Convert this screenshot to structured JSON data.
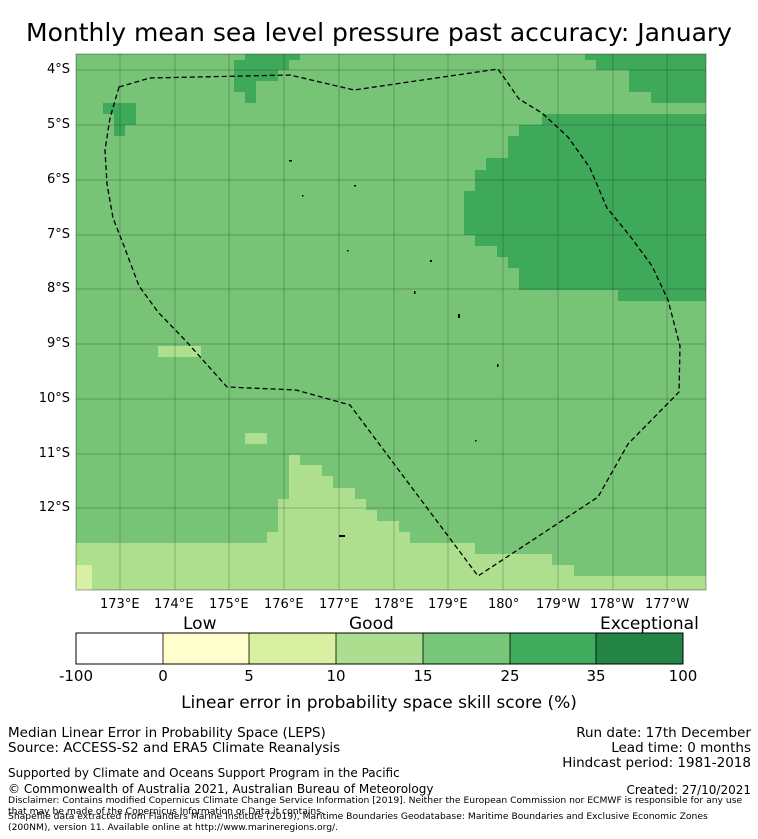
{
  "title": "Monthly mean sea level pressure past accuracy: January",
  "map": {
    "lat_labels": [
      "4°S",
      "5°S",
      "6°S",
      "7°S",
      "8°S",
      "9°S",
      "10°S",
      "11°S",
      "12°S"
    ],
    "lon_labels": [
      "173°E",
      "174°E",
      "175°E",
      "176°E",
      "177°E",
      "178°E",
      "179°E",
      "180°",
      "179°W",
      "178°W",
      "177°W"
    ],
    "colors": {
      "r25_35": "#3fa95a",
      "r15_25": "#77c477",
      "r10_15": "#addf8e",
      "r5_10": "#d8f0a3",
      "boundary": "#000000"
    }
  },
  "colorbar": {
    "categories": [
      "Low",
      "Good",
      "Exceptional"
    ],
    "ticks": [
      "-100",
      "0",
      "5",
      "10",
      "15",
      "25",
      "35",
      "100"
    ],
    "colors": [
      "#ffffff",
      "#ffffcc",
      "#d9f0a3",
      "#addd8e",
      "#78c679",
      "#41ab5d",
      "#238443"
    ],
    "label": "Linear error in probability space skill score (%)"
  },
  "footer": {
    "line1": "Median Linear Error in Probability Space (LEPS)",
    "line2": "Source: ACCESS-S2 and ERA5 Climate Reanalysis",
    "run_date": "Run date: 17th December",
    "lead_time": "Lead time: 0 months",
    "hindcast": "Hindcast period: 1981-2018",
    "support": "Supported by Climate and Oceans Support Program in the Pacific",
    "copyright": "© Commonwealth of Australia 2021, Australian Bureau of Meteorology",
    "created": "Created: 27/10/2021",
    "disclaimer": "Disclaimer: Contains modified Copernicus Climate Change Service Information [2019]. Neither the European Commission nor ECMWF is responsible for any use that may be made of the Copernicus Information or Data it contains.",
    "shapefile": "Shapefile data extracted from Flanders Marine Institute (2019), Maritime Boundaries Geodatabase: Maritime Boundaries and Exclusive Economic Zones (200NM), version 11. Available online at http://www.marineregions.org/."
  }
}
